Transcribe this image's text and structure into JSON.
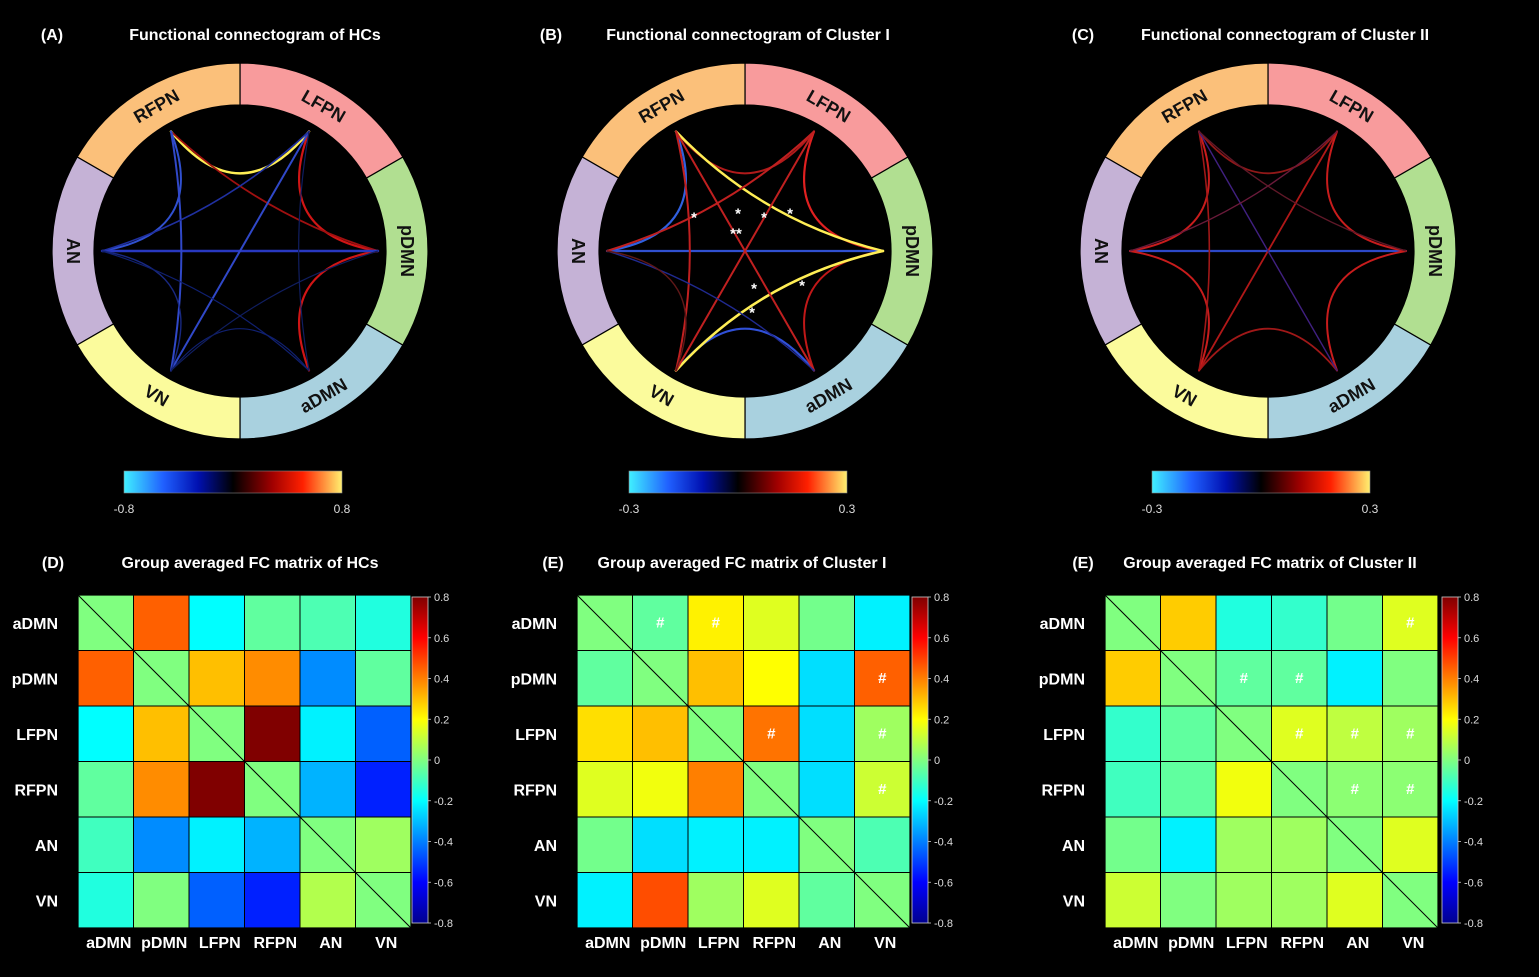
{
  "networks": [
    "aDMN",
    "pDMN",
    "LFPN",
    "RFPN",
    "AN",
    "VN"
  ],
  "ring_colors": {
    "aDMN": "#a9d1df",
    "pDMN": "#b1df91",
    "LFPN": "#f89b9c",
    "RFPN": "#fbc07a",
    "AN": "#c5b2d6",
    "VN": "#fbfb9c"
  },
  "connectograms": [
    {
      "letter": "(A)",
      "title": "Functional connectogram of HCs",
      "colorbar": {
        "min_label": "-0.8",
        "max_label": "0.8"
      },
      "edges": [
        {
          "from": "RFPN",
          "to": "LFPN",
          "color": "#ffee55",
          "width": 2.5,
          "bend": 0.3
        },
        {
          "from": "pDMN",
          "to": "LFPN",
          "color": "#d01515",
          "width": 2.2,
          "bend": 0.3
        },
        {
          "from": "pDMN",
          "to": "aDMN",
          "color": "#d01515",
          "width": 2.2,
          "bend": 0.3
        },
        {
          "from": "pDMN",
          "to": "RFPN",
          "color": "#a01010",
          "width": 1.8,
          "bend": 0.6
        },
        {
          "from": "AN",
          "to": "RFPN",
          "color": "#3050d0",
          "width": 2,
          "bend": 0.3
        },
        {
          "from": "AN",
          "to": "pDMN",
          "color": "#2838c0",
          "width": 2.4,
          "bend": 0.9
        },
        {
          "from": "RFPN",
          "to": "VN",
          "color": "#3048c8",
          "width": 2,
          "bend": 0.7
        },
        {
          "from": "LFPN",
          "to": "VN",
          "color": "#3048c8",
          "width": 2,
          "bend": 0.9
        },
        {
          "from": "LFPN",
          "to": "AN",
          "color": "#2030a0",
          "width": 1.6,
          "bend": 0.6
        },
        {
          "from": "AN",
          "to": "VN",
          "color": "#182880",
          "width": 1.4,
          "bend": 0.3
        },
        {
          "from": "aDMN",
          "to": "VN",
          "color": "#102070",
          "width": 1.2,
          "bend": 0.3
        },
        {
          "from": "aDMN",
          "to": "LFPN",
          "color": "#101e60",
          "width": 1.2,
          "bend": 0.7
        },
        {
          "from": "AN",
          "to": "aDMN",
          "color": "#102070",
          "width": 1.2,
          "bend": 0.6
        },
        {
          "from": "pDMN",
          "to": "VN",
          "color": "#101e60",
          "width": 1.2,
          "bend": 0.6
        }
      ],
      "stars": []
    },
    {
      "letter": "(B)",
      "title": "Functional connectogram of Cluster I",
      "colorbar": {
        "min_label": "-0.3",
        "max_label": "0.3"
      },
      "edges": [
        {
          "from": "RFPN",
          "to": "AN",
          "color": "#3060e0",
          "width": 2.2,
          "bend": 0.3
        },
        {
          "from": "RFPN",
          "to": "LFPN",
          "color": "#b01a1a",
          "width": 2,
          "bend": 0.3
        },
        {
          "from": "LFPN",
          "to": "pDMN",
          "color": "#e02020",
          "width": 2.2,
          "bend": 0.3
        },
        {
          "from": "pDMN",
          "to": "aDMN",
          "color": "#c01818",
          "width": 2,
          "bend": 0.3
        },
        {
          "from": "aDMN",
          "to": "VN",
          "color": "#3050d8",
          "width": 2.2,
          "bend": 0.3
        },
        {
          "from": "AN",
          "to": "pDMN",
          "color": "#3050d0",
          "width": 2.2,
          "bend": 0.9
        },
        {
          "from": "pDMN",
          "to": "VN",
          "color": "#ffee55",
          "width": 2.6,
          "bend": 0.45
        },
        {
          "from": "RFPN",
          "to": "pDMN",
          "color": "#ffee55",
          "width": 2.4,
          "bend": 0.5
        },
        {
          "from": "LFPN",
          "to": "AN",
          "color": "#c02020",
          "width": 2,
          "bend": 0.6
        },
        {
          "from": "RFPN",
          "to": "aDMN",
          "color": "#c02020",
          "width": 2,
          "bend": 0.9
        },
        {
          "from": "LFPN",
          "to": "VN",
          "color": "#c02020",
          "width": 2,
          "bend": 0.9
        },
        {
          "from": "RFPN",
          "to": "VN",
          "color": "#c02020",
          "width": 2,
          "bend": 0.6
        },
        {
          "from": "AN",
          "to": "aDMN",
          "color": "#202a90",
          "width": 1.4,
          "bend": 0.6
        },
        {
          "from": "AN",
          "to": "VN",
          "color": "#601818",
          "width": 1.4,
          "bend": 0.3
        }
      ],
      "stars": [
        "*",
        "*",
        "*",
        "*",
        "**",
        "*",
        "*",
        "*"
      ]
    },
    {
      "letter": "(C)",
      "title": "Functional connectogram of Cluster II",
      "colorbar": {
        "min_label": "-0.3",
        "max_label": "0.3"
      },
      "edges": [
        {
          "from": "RFPN",
          "to": "LFPN",
          "color": "#901818",
          "width": 1.8,
          "bend": 0.3
        },
        {
          "from": "AN",
          "to": "pDMN",
          "color": "#2c48c8",
          "width": 2.2,
          "bend": 0.9
        },
        {
          "from": "AN",
          "to": "RFPN",
          "color": "#c81c1c",
          "width": 2,
          "bend": 0.3
        },
        {
          "from": "LFPN",
          "to": "pDMN",
          "color": "#c81c1c",
          "width": 2,
          "bend": 0.3
        },
        {
          "from": "pDMN",
          "to": "aDMN",
          "color": "#c81c1c",
          "width": 2,
          "bend": 0.3
        },
        {
          "from": "aDMN",
          "to": "VN",
          "color": "#a01818",
          "width": 1.8,
          "bend": 0.3
        },
        {
          "from": "AN",
          "to": "VN",
          "color": "#c81c1c",
          "width": 2,
          "bend": 0.3
        },
        {
          "from": "RFPN",
          "to": "VN",
          "color": "#a01818",
          "width": 1.6,
          "bend": 0.7
        },
        {
          "from": "LFPN",
          "to": "VN",
          "color": "#b01818",
          "width": 1.8,
          "bend": 0.9
        },
        {
          "from": "RFPN",
          "to": "aDMN",
          "color": "#402080",
          "width": 1.4,
          "bend": 0.9
        },
        {
          "from": "LFPN",
          "to": "AN",
          "color": "#6a1a3a",
          "width": 1.4,
          "bend": 0.6
        },
        {
          "from": "pDMN",
          "to": "RFPN",
          "color": "#601828",
          "width": 1.4,
          "bend": 0.6
        }
      ],
      "stars": []
    }
  ],
  "chart_data": [
    {
      "type": "heatmap",
      "letter": "(D)",
      "title": "Group averaged  FC matrix of HCs",
      "rows": [
        "aDMN",
        "pDMN",
        "LFPN",
        "RFPN",
        "AN",
        "VN"
      ],
      "cols": [
        "aDMN",
        "pDMN",
        "LFPN",
        "RFPN",
        "AN",
        "VN"
      ],
      "colorbar_ticks": [
        "0.8",
        "0.6",
        "0.4",
        "0.2",
        "0",
        "-0.2",
        "-0.4",
        "-0.6",
        "-0.8"
      ],
      "vmin": -0.8,
      "vmax": 0.8,
      "values": [
        [
          0.0,
          0.45,
          -0.2,
          -0.05,
          -0.08,
          -0.15
        ],
        [
          0.45,
          0.0,
          0.3,
          0.38,
          -0.38,
          -0.05
        ],
        [
          -0.2,
          0.3,
          0.0,
          0.8,
          -0.22,
          -0.45
        ],
        [
          -0.05,
          0.38,
          0.8,
          0.0,
          -0.32,
          -0.55
        ],
        [
          -0.1,
          -0.38,
          -0.22,
          -0.32,
          0.0,
          0.05
        ],
        [
          -0.15,
          0.0,
          -0.45,
          -0.55,
          0.08,
          0.0
        ]
      ],
      "marks": []
    },
    {
      "type": "heatmap",
      "letter": "(E)",
      "title": "Group averaged FC matrix of Cluster I",
      "rows": [
        "aDMN",
        "pDMN",
        "LFPN",
        "RFPN",
        "AN",
        "VN"
      ],
      "cols": [
        "aDMN",
        "pDMN",
        "LFPN",
        "RFPN",
        "AN",
        "VN"
      ],
      "colorbar_ticks": [
        "0.8",
        "0.6",
        "0.4",
        "0.2",
        "0",
        "-0.2",
        "-0.4",
        "-0.6",
        "-0.8"
      ],
      "vmin": -0.8,
      "vmax": 0.8,
      "values": [
        [
          0.0,
          -0.05,
          0.22,
          0.15,
          -0.02,
          -0.22
        ],
        [
          -0.05,
          0.0,
          0.3,
          0.2,
          -0.25,
          0.45
        ],
        [
          0.25,
          0.3,
          0.0,
          0.42,
          -0.25,
          0.05
        ],
        [
          0.15,
          0.18,
          0.4,
          0.0,
          -0.25,
          0.12
        ],
        [
          -0.02,
          -0.25,
          -0.22,
          -0.22,
          0.0,
          -0.08
        ],
        [
          -0.22,
          0.48,
          0.05,
          0.15,
          -0.05,
          0.0
        ]
      ],
      "marks": [
        {
          "row": 0,
          "col": 1,
          "text": "#"
        },
        {
          "row": 0,
          "col": 2,
          "text": "#"
        },
        {
          "row": 1,
          "col": 5,
          "text": "#"
        },
        {
          "row": 2,
          "col": 3,
          "text": "#"
        },
        {
          "row": 2,
          "col": 5,
          "text": "#"
        },
        {
          "row": 3,
          "col": 5,
          "text": "#"
        }
      ]
    },
    {
      "type": "heatmap",
      "letter": "(E)",
      "title": "Group averaged FC matrix of Cluster II",
      "rows": [
        "aDMN",
        "pDMN",
        "LFPN",
        "RFPN",
        "AN",
        "VN"
      ],
      "cols": [
        "aDMN",
        "pDMN",
        "LFPN",
        "RFPN",
        "AN",
        "VN"
      ],
      "colorbar_ticks": [
        "0.8",
        "0.6",
        "0.4",
        "0.2",
        "0",
        "-0.2",
        "-0.4",
        "-0.6",
        "-0.8"
      ],
      "vmin": -0.8,
      "vmax": 0.8,
      "values": [
        [
          0.0,
          0.28,
          -0.15,
          -0.12,
          -0.02,
          0.15
        ],
        [
          0.28,
          0.0,
          -0.05,
          -0.05,
          -0.22,
          0.0
        ],
        [
          -0.12,
          -0.05,
          0.0,
          0.15,
          0.1,
          0.05
        ],
        [
          -0.1,
          -0.05,
          0.18,
          0.0,
          0.02,
          0.02
        ],
        [
          -0.02,
          -0.22,
          0.05,
          0.05,
          0.0,
          0.15
        ],
        [
          0.12,
          0.0,
          0.05,
          0.05,
          0.15,
          0.0
        ]
      ],
      "marks": [
        {
          "row": 0,
          "col": 5,
          "text": "#"
        },
        {
          "row": 1,
          "col": 2,
          "text": "#"
        },
        {
          "row": 1,
          "col": 3,
          "text": "#"
        },
        {
          "row": 2,
          "col": 3,
          "text": "#"
        },
        {
          "row": 2,
          "col": 4,
          "text": "#"
        },
        {
          "row": 2,
          "col": 5,
          "text": "#"
        },
        {
          "row": 3,
          "col": 4,
          "text": "#"
        },
        {
          "row": 3,
          "col": 5,
          "text": "#"
        }
      ]
    }
  ]
}
